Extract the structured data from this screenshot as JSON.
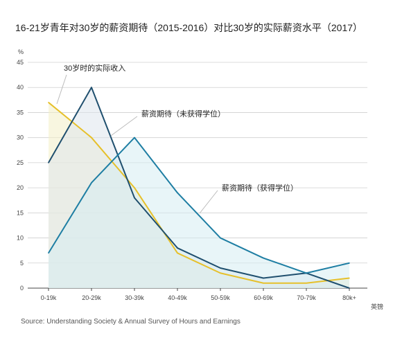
{
  "chart_data": {
    "type": "area",
    "title": "16-21岁青年对30岁的薪资期待（2015-2016）对比30岁的实际薪资水平（2017）",
    "ylabel": "%",
    "xlabel": "英镑",
    "ylim": [
      0,
      45
    ],
    "yticks": [
      0,
      5,
      10,
      15,
      20,
      25,
      30,
      35,
      40,
      45
    ],
    "grid": true,
    "categories": [
      "0-19k",
      "20-29k",
      "30-39k",
      "40-49k",
      "50-59k",
      "60-69k",
      "70-79k",
      "80k+"
    ],
    "series": [
      {
        "name": "30岁时的实际收入",
        "values": [
          37,
          30,
          20,
          7,
          3,
          1,
          1,
          2
        ],
        "color": "#e6c02a",
        "fill": "#f3eec6"
      },
      {
        "name": "薪资期待（未获得学位）",
        "values": [
          25,
          40,
          18,
          8,
          4,
          2,
          3,
          0
        ],
        "color": "#1f4f6e",
        "fill": "#dfe6ec"
      },
      {
        "name": "薪资期待（获得学位）",
        "values": [
          7,
          21,
          30,
          19,
          10,
          6,
          3,
          5
        ],
        "color": "#1e7ea3",
        "fill": "#d6ecf3"
      }
    ],
    "source": "Source: Understanding Society & Annual Survey of Hours and Earnings"
  }
}
